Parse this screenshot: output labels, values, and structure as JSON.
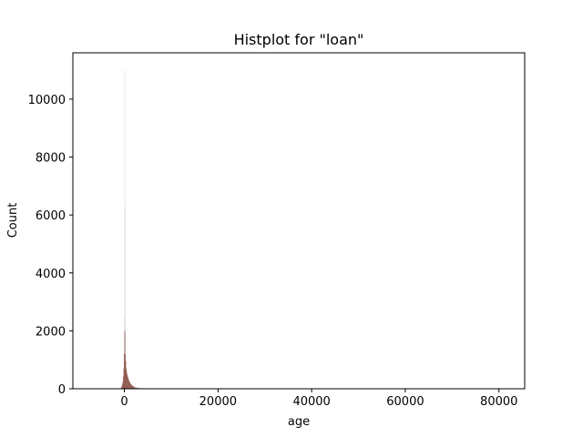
{
  "chart_data": {
    "type": "bar",
    "title": "Histplot for \"loan\"",
    "xlabel": "age",
    "ylabel": "Count",
    "xlim": [
      -11000,
      85500
    ],
    "ylim": [
      0,
      11600
    ],
    "xticks": [
      0,
      20000,
      40000,
      60000,
      80000
    ],
    "yticks": [
      0,
      2000,
      4000,
      6000,
      8000,
      10000
    ],
    "grid": false,
    "legend": "none",
    "series": [
      {
        "color": "#c8c8c8",
        "opacity": 0.45,
        "bin_width": 60,
        "bins": [
          {
            "x": -100,
            "y": 80
          },
          {
            "x": -40,
            "y": 2500
          },
          {
            "x": 20,
            "y": 11000
          },
          {
            "x": 80,
            "y": 6300
          },
          {
            "x": 140,
            "y": 1900
          },
          {
            "x": 200,
            "y": 420
          },
          {
            "x": 260,
            "y": 100
          }
        ]
      },
      {
        "color": "#8a4f45",
        "opacity": 0.78,
        "bin_width": 100,
        "bins": [
          {
            "x": -700,
            "y": 50
          },
          {
            "x": -600,
            "y": 110
          },
          {
            "x": -500,
            "y": 160
          },
          {
            "x": -400,
            "y": 250
          },
          {
            "x": -300,
            "y": 420
          },
          {
            "x": -200,
            "y": 700
          },
          {
            "x": -100,
            "y": 1200
          },
          {
            "x": 0,
            "y": 2000
          },
          {
            "x": 100,
            "y": 1200
          },
          {
            "x": 200,
            "y": 950
          },
          {
            "x": 300,
            "y": 700
          },
          {
            "x": 400,
            "y": 600
          },
          {
            "x": 500,
            "y": 500
          },
          {
            "x": 600,
            "y": 450
          },
          {
            "x": 700,
            "y": 380
          },
          {
            "x": 800,
            "y": 330
          },
          {
            "x": 900,
            "y": 280
          },
          {
            "x": 1000,
            "y": 250
          },
          {
            "x": 1100,
            "y": 210
          },
          {
            "x": 1200,
            "y": 180
          },
          {
            "x": 1300,
            "y": 160
          },
          {
            "x": 1400,
            "y": 140
          },
          {
            "x": 1500,
            "y": 120
          },
          {
            "x": 1600,
            "y": 110
          },
          {
            "x": 1700,
            "y": 95
          },
          {
            "x": 1800,
            "y": 85
          },
          {
            "x": 1900,
            "y": 80
          },
          {
            "x": 2000,
            "y": 70
          },
          {
            "x": 2200,
            "y": 55
          },
          {
            "x": 2400,
            "y": 45
          },
          {
            "x": 2600,
            "y": 38
          },
          {
            "x": 2800,
            "y": 32
          },
          {
            "x": 3000,
            "y": 28
          },
          {
            "x": 3200,
            "y": 22
          },
          {
            "x": 3400,
            "y": 18
          },
          {
            "x": 3600,
            "y": 15
          },
          {
            "x": 3800,
            "y": 12
          },
          {
            "x": 4000,
            "y": 10
          },
          {
            "x": 4300,
            "y": 8
          },
          {
            "x": 4600,
            "y": 6
          },
          {
            "x": 5000,
            "y": 5
          },
          {
            "x": 5500,
            "y": 4
          }
        ]
      }
    ]
  }
}
